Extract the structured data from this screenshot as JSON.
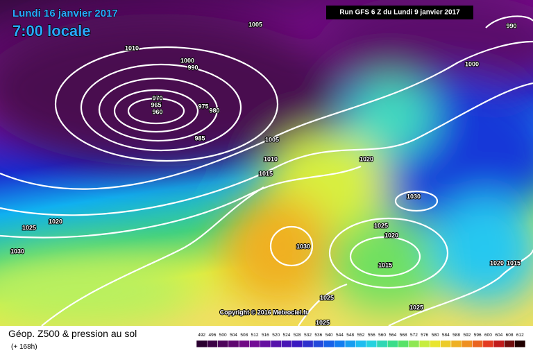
{
  "header": {
    "date": "Lundi 16 janvier 2017",
    "time": "7:00 locale",
    "run": "Run GFS 6 Z du Lundi 9 janvier 2017"
  },
  "isobars": [
    1005,
    1010,
    1000,
    990,
    970,
    965,
    960,
    975,
    980,
    985,
    1005,
    1010,
    1015,
    1020,
    1030,
    1025,
    1020,
    1015,
    1030,
    1025,
    1020,
    1030,
    990,
    1000,
    1020,
    1015,
    1025,
    1025,
    1025
  ],
  "copyright": "Copyright © 2016 Meteociel.fr",
  "footer": {
    "title": "Géop. Z500 & pression au sol",
    "lead": "(+ 168h)"
  },
  "scale": {
    "values": [
      492,
      496,
      500,
      504,
      508,
      512,
      516,
      520,
      524,
      528,
      532,
      536,
      540,
      544,
      548,
      552,
      556,
      560,
      564,
      568,
      572,
      576,
      580,
      584,
      588,
      592,
      596,
      600,
      604,
      608,
      612
    ]
  }
}
